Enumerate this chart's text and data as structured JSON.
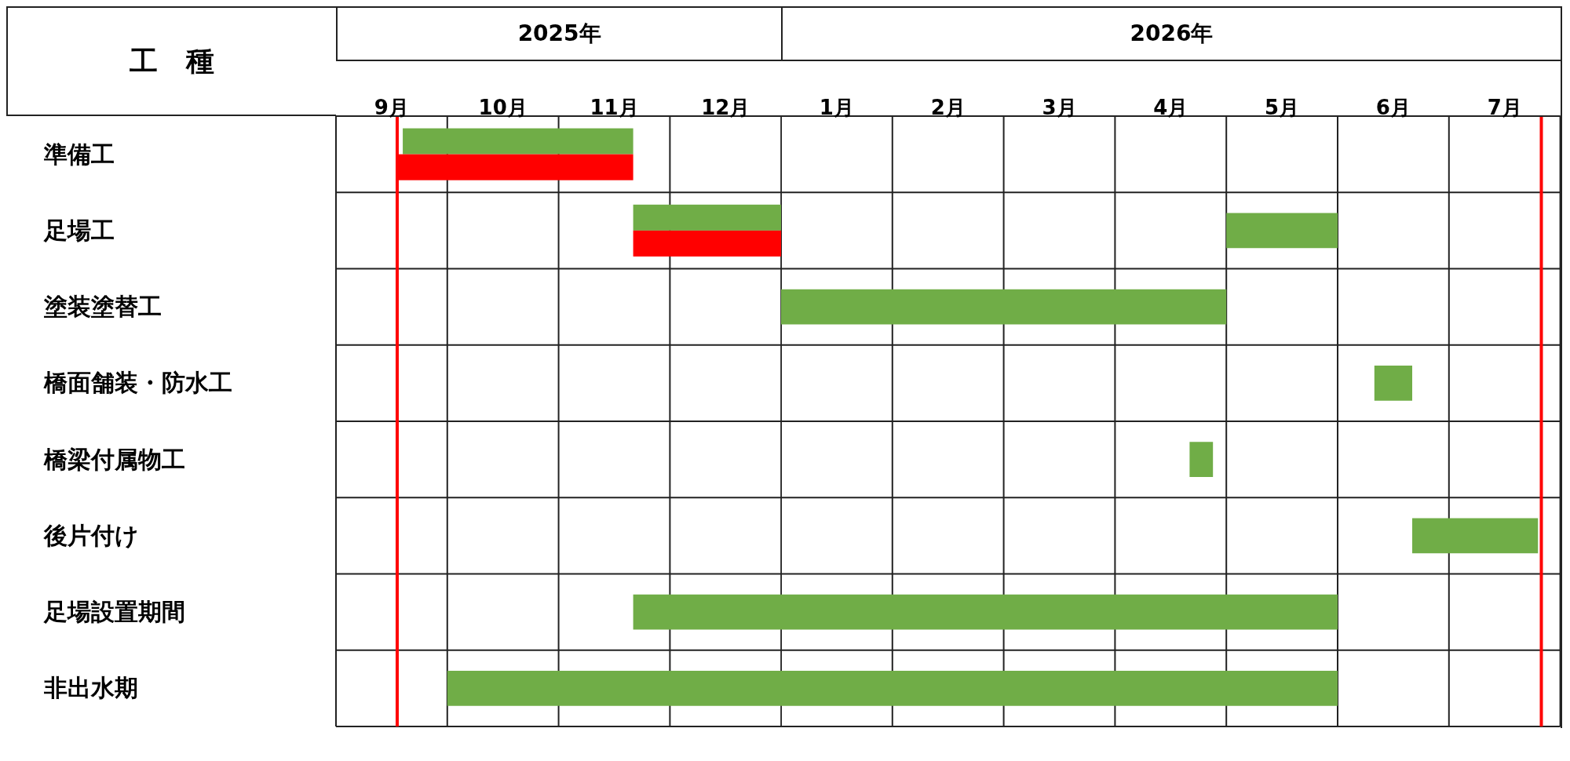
{
  "chart_data": [
    {
      "type": "bar",
      "orientation": "horizontal",
      "title": "2025年",
      "ylabel": "工　種",
      "categories": [
        "準備工",
        "足場工",
        "塗装塗替工",
        "橋面舗装・防水工",
        "橋梁付属物工",
        "後片付け",
        "足場設置期間",
        "非出水期"
      ],
      "series": [
        {
          "color": "#70ad47",
          "base": [
            9.1,
            11.17,
            null,
            null,
            null,
            null,
            11.17,
            9.5
          ],
          "values": [
            2.07,
            1.33,
            null,
            null,
            null,
            null,
            1.33,
            3
          ]
        },
        {
          "color": "#ff0000",
          "base": [
            9.05,
            11.17,
            null,
            null,
            null,
            null,
            null,
            null
          ],
          "values": [
            2.12,
            1.33,
            null,
            null,
            null,
            null,
            null,
            null
          ]
        }
      ],
      "xlim": [
        8.5,
        12.5
      ],
      "xticks": [
        {
          "value": 8.5,
          "label": null
        },
        {
          "value": 9,
          "label": "9月"
        },
        {
          "value": 9.5,
          "label": null
        },
        {
          "value": 10,
          "label": "10月"
        },
        {
          "value": 10.5,
          "label": null
        },
        {
          "value": 11,
          "label": "11月"
        },
        {
          "value": 11.5,
          "label": null
        },
        {
          "value": 12,
          "label": "12月"
        },
        {
          "value": 12.5,
          "label": null
        }
      ],
      "ref_lines": [
        {
          "axis": "x",
          "value": 9.05,
          "color": "#ff0000"
        }
      ],
      "grid": true
    },
    {
      "type": "bar",
      "orientation": "horizontal",
      "title": "2026年",
      "categories": [
        null,
        null,
        null,
        null,
        null,
        null,
        null,
        null
      ],
      "series": [
        {
          "color": "#70ad47",
          "base": [
            null,
            4.5,
            0.5,
            5.83,
            4.17,
            6.17,
            0.5,
            0.5
          ],
          "values": [
            null,
            1,
            4,
            0.34,
            0.21,
            1.13,
            5,
            5
          ]
        }
      ],
      "xlim": [
        0.5,
        7.5
      ],
      "xticks": [
        {
          "value": 0.5,
          "label": null
        },
        {
          "value": 1,
          "label": "1月"
        },
        {
          "value": 1.5,
          "label": null
        },
        {
          "value": 2,
          "label": "2月"
        },
        {
          "value": 2.5,
          "label": null
        },
        {
          "value": 3,
          "label": "3月"
        },
        {
          "value": 3.5,
          "label": null
        },
        {
          "value": 4,
          "label": "4月"
        },
        {
          "value": 4.5,
          "label": null
        },
        {
          "value": 5,
          "label": "5月"
        },
        {
          "value": 5.5,
          "label": null
        },
        {
          "value": 6,
          "label": "6月"
        },
        {
          "value": 6.5,
          "label": null
        },
        {
          "value": 7,
          "label": "7月"
        },
        {
          "value": 7.5,
          "label": null
        }
      ],
      "ref_lines": [
        {
          "axis": "x",
          "value": 7.33,
          "color": "#ff0000"
        }
      ],
      "grid": true,
      "tick_labels": "x"
    }
  ]
}
